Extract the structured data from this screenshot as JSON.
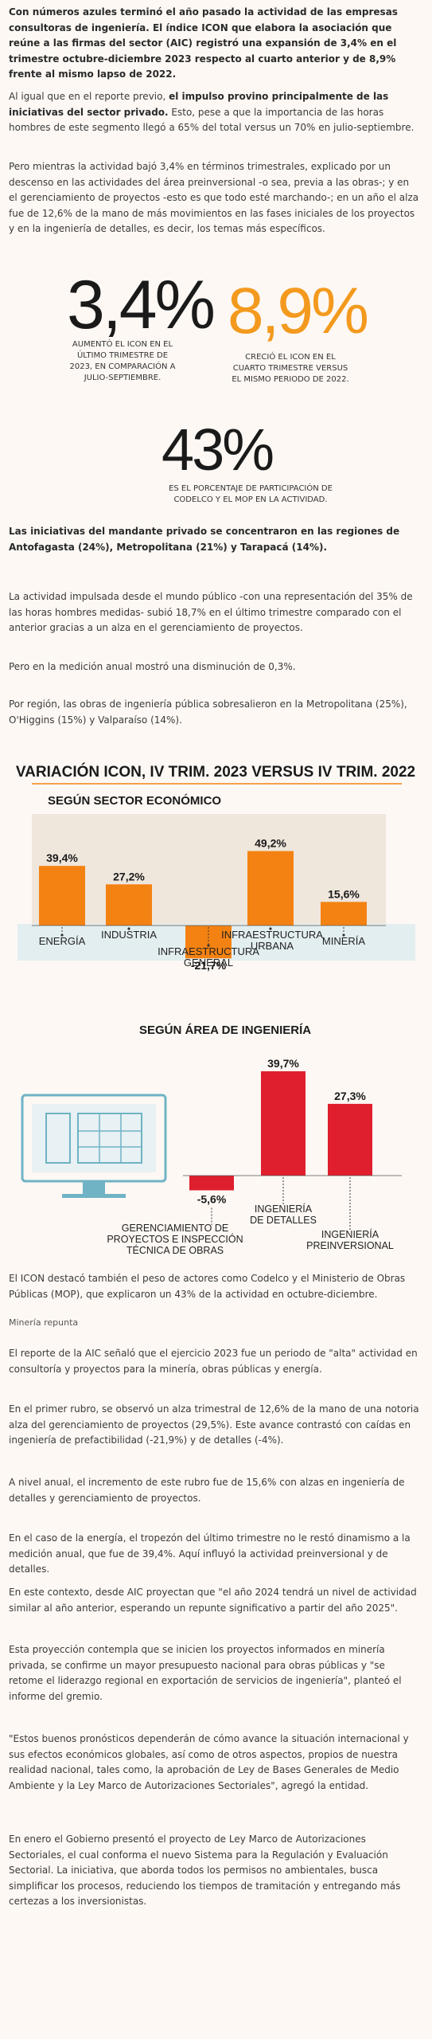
{
  "intro": {
    "lead": "Con números azules terminó el año pasado la actividad de las empresas consultoras de ingeniería. El índice ICON que elabora la asociación que reúne a las firmas del sector (AIC) registró una expansión de 3,4% en el trimestre octubre-diciembre 2023 respecto al cuarto anterior y de 8,9% frente al mismo lapso de 2022.",
    "p1_a": "Al igual que en el reporte previo, ",
    "p1_b": "el impulso provino principalmente de las iniciativas del sector privado.",
    "p1_c": " Esto, pese a que la importancia de las horas hombres de este segmento llegó a 65% del total versus un 70% en julio-septiembre.",
    "p2": "Pero mientras la actividad bajó 3,4% en términos trimestrales, explicado por un descenso en las actividades del área preinversional -o sea, previa a las obras-; y en el gerenciamiento de proyectos -esto es que todo esté marchando-; en un año el alza fue de 12,6% de la mano de más movimientos en las fases iniciales de los proyectos y en la ingeniería de detalles, es decir, los temas más específicos."
  },
  "stats": [
    {
      "value": "3,4%",
      "caption": "AUMENTÓ EL ICON EN EL ÚLTIMO TRIMESTRE DE 2023, EN COMPARACIÓN A JULIO-SEPTIEMBRE.",
      "color": "#1a1a1a"
    },
    {
      "value": "8,9%",
      "caption": "CRECIÓ EL ICON EN EL CUARTO TRIMESTRE VERSUS EL MISMO PERIODO DE 2022.",
      "color": "#f39a1e"
    },
    {
      "value": "43%",
      "caption": "ES EL PORCENTAJE DE PARTICIPACIÓN DE CODELCO Y EL MOP EN LA ACTIVIDAD.",
      "color": "#1a1a1a"
    }
  ],
  "mid": {
    "lead": "Las iniciativas del mandante privado se concentraron en las regiones de Antofagasta (24%), Metropolitana (21%) y Tarapacá (14%).",
    "p1": "La actividad impulsada desde el mundo público -con una representación del 35% de las horas hombres medidas- subió 18,7% en el último trimestre comparado con el anterior gracias a un alza en el gerenciamiento de proyectos.",
    "p2": "Pero en la medición anual mostró una disminución de 0,3%.",
    "p3": "Por región, las obras de ingeniería pública sobresalieron en la Metropolitana (25%), O'Higgins (15%) y Valparaíso (14%)."
  },
  "chart_data": [
    {
      "type": "bar",
      "title": "VARIACIÓN ICON, IV TRIM. 2023 VERSUS IV TRIM. 2022",
      "subtitle": "SEGÚN SECTOR ECONÓMICO",
      "categories": [
        "ENERGÍA",
        "INDUSTRIA",
        "INFRAESTRUCTURA GENERAL",
        "INFRAESTRUCTURA URBANA",
        "MINERÍA"
      ],
      "values": [
        39.4,
        27.2,
        -21.7,
        49.2,
        15.6
      ],
      "labels": [
        "39,4%",
        "27,2%",
        "-21,7%",
        "49,2%",
        "15,6%"
      ],
      "bar_color": "#f48212"
    },
    {
      "type": "bar",
      "subtitle": "SEGÚN ÁREA DE INGENIERÍA",
      "categories": [
        "GERENCIAMIENTO DE PROYECTOS E INSPECCIÓN TÉCNICA DE OBRAS",
        "INGENIERÍA DE DETALLES",
        "INGENIERÍA PREINVERSIONAL"
      ],
      "values": [
        -5.6,
        39.7,
        27.3
      ],
      "labels": [
        "-5,6%",
        "39,7%",
        "27,3%"
      ],
      "bar_color": "#df1f2d"
    }
  ],
  "after": {
    "p1": "El ICON destacó también el peso de actores como Codelco y el Ministerio de Obras Públicas (MOP), que explicaron un 43% de la actividad en octubre-diciembre.",
    "subhead": "Minería repunta",
    "p2": "El reporte de la AIC señaló que el ejercicio 2023 fue un periodo de \"alta\" actividad en consultoría y proyectos para la minería, obras públicas y energía.",
    "p3": "En el primer rubro, se observó un alza trimestral de 12,6% de la mano de una notoria alza del gerenciamiento de proyectos (29,5%). Este avance contrastó con caídas en ingeniería de prefactibilidad (-21,9%) y de detalles (-4%).",
    "p4": "A nivel anual, el incremento de este rubro fue de 15,6% con alzas en ingeniería de detalles y gerenciamiento de proyectos.",
    "p5": "En el caso de la energía, el tropezón del último trimestre no le restó dinamismo a la medición anual, que fue de 39,4%. Aquí influyó la actividad preinversional y de detalles.",
    "p6": "En este contexto, desde AIC proyectan que \"el año 2024 tendrá un nivel de actividad similar al año anterior, esperando un repunte significativo a partir del año 2025\".",
    "p7": "Esta proyección contempla que se inicien los proyectos informados en minería privada, se confirme un mayor presupuesto nacional para obras públicas y \"se retome el liderazgo regional en exportación de servicios de ingeniería\", planteó el informe del gremio.",
    "p8": "\"Estos buenos pronósticos dependerán de cómo avance la situación internacional y sus efectos económicos globales, así como de otros aspectos, propios de nuestra realidad nacional, tales como, la aprobación de Ley de Bases Generales de Medio Ambiente y la Ley Marco de Autorizaciones Sectoriales\", agregó la entidad.",
    "p9": "En enero el Gobierno presentó el proyecto de Ley Marco de Autorizaciones Sectoriales, el cual conforma el nuevo Sistema para la Regulación y Evaluación Sectorial. La iniciativa, que aborda todos los permisos no ambientales, busca simplificar los procesos, reduciendo los tiempos de tramitación y entregando más certezas a los inversionistas."
  }
}
